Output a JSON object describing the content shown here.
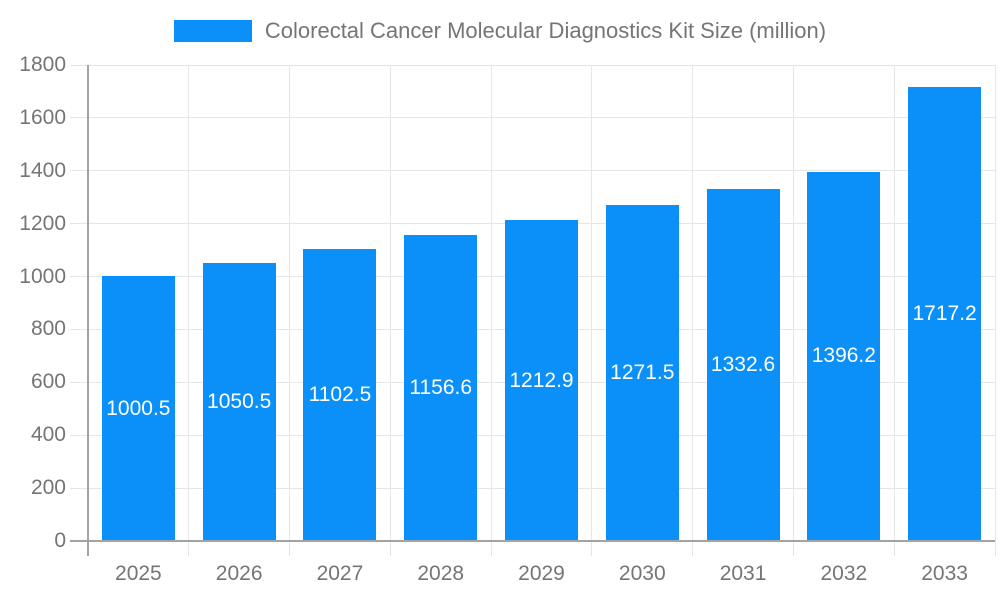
{
  "legend": {
    "label": "Colorectal Cancer Molecular Diagnostics Kit Size (million)"
  },
  "colors": {
    "bar": "#0a90f8",
    "axis_text": "#757575",
    "value_text": "#ffffff",
    "grid_line": "#e6e6e6",
    "axis_line": "#a3a3a3",
    "background": "#ffffff"
  },
  "chart_data": {
    "type": "bar",
    "title": "Colorectal Cancer Molecular Diagnostics Kit Size (million)",
    "categories": [
      "2025",
      "2026",
      "2027",
      "2028",
      "2029",
      "2030",
      "2031",
      "2032",
      "2033"
    ],
    "series": [
      {
        "name": "Colorectal Cancer Molecular Diagnostics Kit Size (million)",
        "values": [
          1000.5,
          1050.5,
          1102.5,
          1156.6,
          1212.9,
          1271.5,
          1332.6,
          1396.2,
          1717.2
        ]
      }
    ],
    "xlabel": "",
    "ylabel": "",
    "ylim": [
      0,
      1800
    ],
    "y_ticks": [
      0,
      200,
      400,
      600,
      800,
      1000,
      1200,
      1400,
      1600,
      1800
    ],
    "grid": "both",
    "legend_position": "top-center",
    "value_label_position": "inside-center"
  }
}
